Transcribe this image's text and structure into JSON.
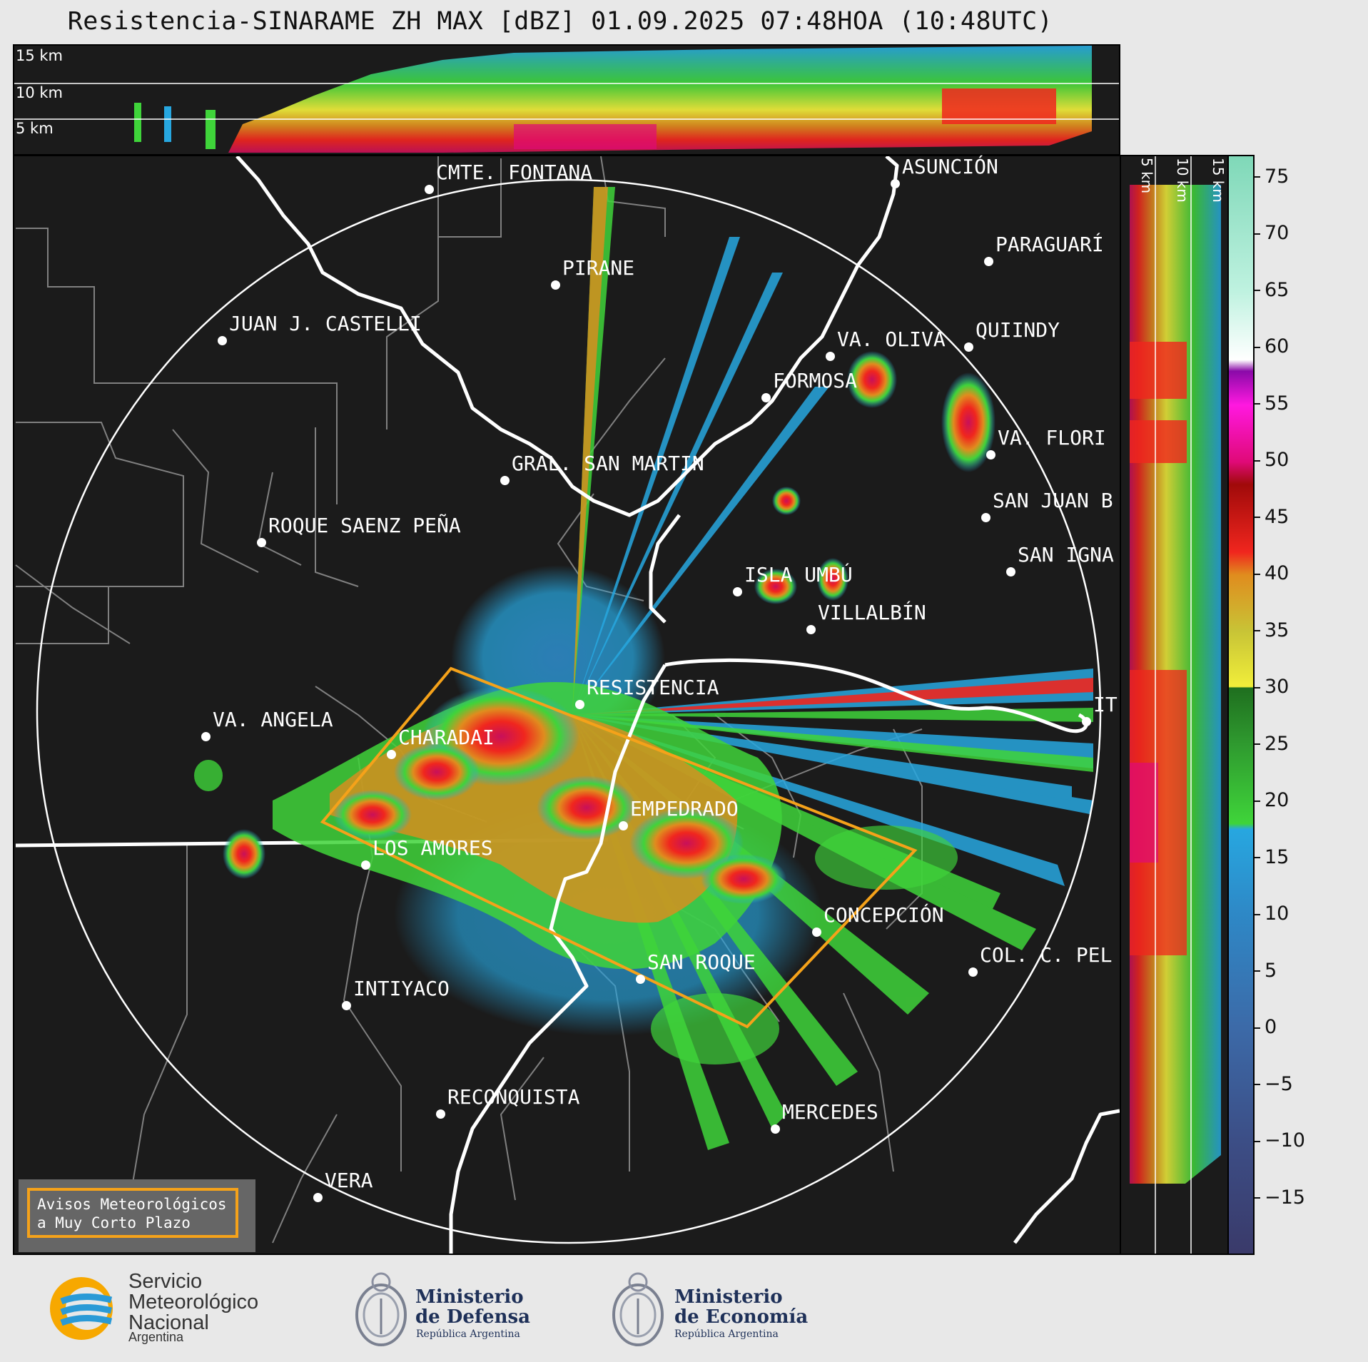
{
  "title": "Resistencia-SINARAME ZH MAX [dBZ] 01.09.2025 07:48HOA (10:48UTC)",
  "height_labels": [
    "15 km",
    "10 km",
    "5 km"
  ],
  "colorbar": {
    "ticks": [
      "75",
      "70",
      "65",
      "60",
      "55",
      "50",
      "45",
      "40",
      "35",
      "30",
      "25",
      "20",
      "15",
      "10",
      "5",
      "0",
      "−5",
      "−10",
      "−15"
    ],
    "min": -20,
    "max": 77,
    "stops": [
      {
        "v": -20,
        "c": "#3a3a6a"
      },
      {
        "v": -10,
        "c": "#3c4e86"
      },
      {
        "v": 0,
        "c": "#3c6aa8"
      },
      {
        "v": 10,
        "c": "#2e88c6"
      },
      {
        "v": 17.5,
        "c": "#27a7e0"
      },
      {
        "v": 18,
        "c": "#3fd43a"
      },
      {
        "v": 25,
        "c": "#2f9a2f"
      },
      {
        "v": 30,
        "c": "#1f6f1f"
      },
      {
        "v": 30.1,
        "c": "#f1ee3a"
      },
      {
        "v": 35,
        "c": "#c8c436"
      },
      {
        "v": 40,
        "c": "#e08c1e"
      },
      {
        "v": 42,
        "c": "#f0261e"
      },
      {
        "v": 48,
        "c": "#a00a0a"
      },
      {
        "v": 50,
        "c": "#e00a78"
      },
      {
        "v": 55,
        "c": "#ff18e0"
      },
      {
        "v": 58,
        "c": "#8a0aa8"
      },
      {
        "v": 59,
        "c": "#ffffff"
      },
      {
        "v": 65,
        "c": "#bff2e0"
      },
      {
        "v": 77,
        "c": "#7fd8b8"
      }
    ]
  },
  "cities": [
    {
      "name": "CMTE. FONTANA"
    },
    {
      "name": "ASUNCIÓN"
    },
    {
      "name": "PARAGUARÍ"
    },
    {
      "name": "PIRANE"
    },
    {
      "name": "JUAN J. CASTELLI"
    },
    {
      "name": "VA. OLIVA"
    },
    {
      "name": "QUIINDY"
    },
    {
      "name": "FORMOSA"
    },
    {
      "name": "VA. FLORI"
    },
    {
      "name": "GRAL. SAN MARTIN"
    },
    {
      "name": "SAN JUAN B"
    },
    {
      "name": "ROQUE SAENZ PEÑA"
    },
    {
      "name": "SAN IGNA"
    },
    {
      "name": "ISLA UMBÚ"
    },
    {
      "name": "VILLALBÍN"
    },
    {
      "name": "RESISTENCIA"
    },
    {
      "name": "VA. ANGELA"
    },
    {
      "name": "CHARADAI"
    },
    {
      "name": "IT"
    },
    {
      "name": "EMPEDRADO"
    },
    {
      "name": "LOS AMORES"
    },
    {
      "name": "CONCEPCIÓN"
    },
    {
      "name": "COL. C. PEL"
    },
    {
      "name": "SAN ROQUE"
    },
    {
      "name": "INTIYACO"
    },
    {
      "name": "RECONQUISTA"
    },
    {
      "name": "MERCEDES"
    },
    {
      "name": "VERA"
    }
  ],
  "warning_box": {
    "line1": "Avisos Meteorológicos",
    "line2": "a Muy Corto Plazo"
  },
  "logos": {
    "smn": {
      "line1": "Servicio",
      "line2": "Meteorológico",
      "line3": "Nacional",
      "sub": "Argentina"
    },
    "defensa": {
      "line1": "Ministerio",
      "line2": "de Defensa",
      "sub": "República Argentina"
    },
    "economia": {
      "line1": "Ministerio",
      "line2": "de Economía",
      "sub": "República Argentina"
    }
  },
  "colors": {
    "warning_polygon": "#f5a21a",
    "map_background": "#1b1b1b",
    "borders": "#808080",
    "rivers": "#ffffff"
  }
}
